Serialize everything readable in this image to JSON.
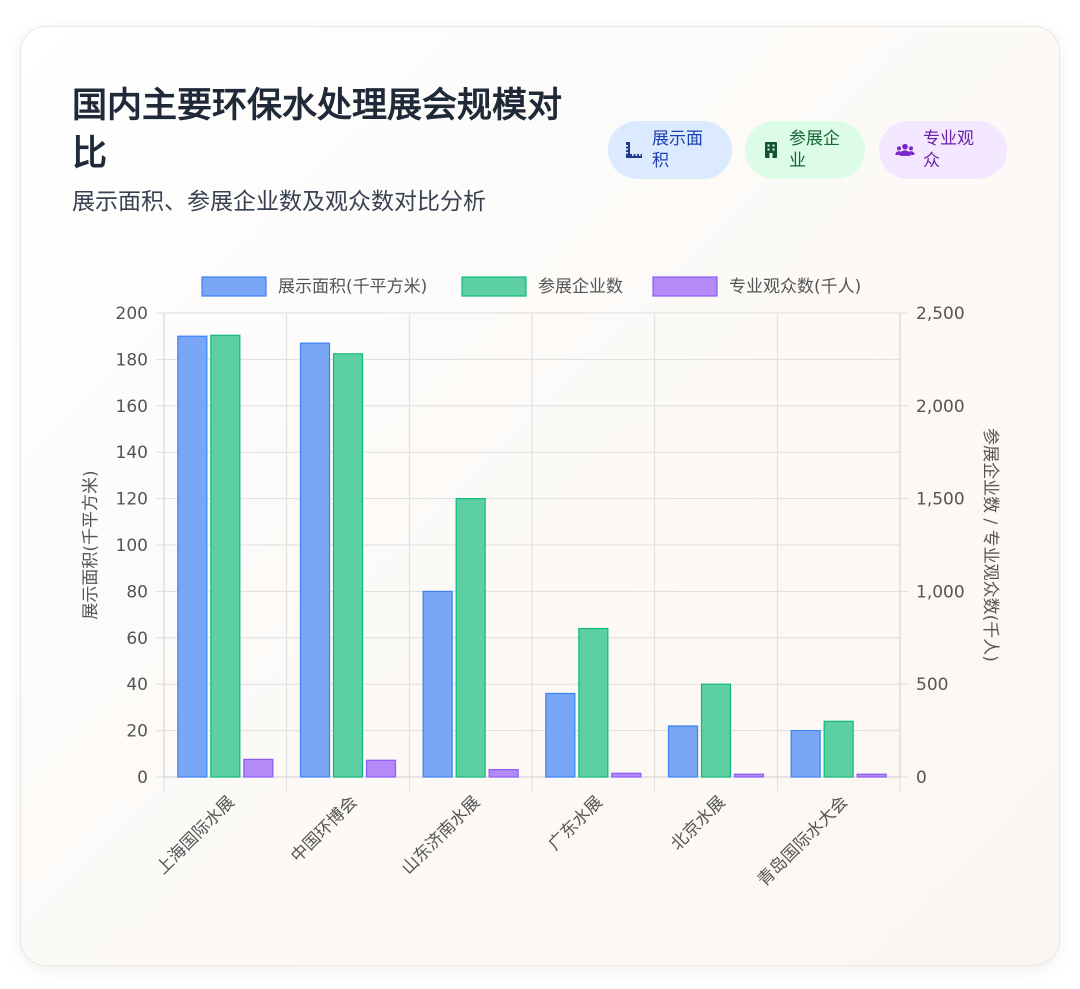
{
  "header": {
    "title": "国内主要环保水处理展会规模对比",
    "subtitle": "展示面积、参展企业数及观众数对比分析"
  },
  "badges": [
    {
      "label": "展示面积",
      "icon": "ruler-icon",
      "bg": "#dbeafe",
      "color": "#1e40af"
    },
    {
      "label": "参展企业",
      "icon": "building-icon",
      "bg": "#dcfce7",
      "color": "#166534"
    },
    {
      "label": "专业观众",
      "icon": "users-icon",
      "bg": "#f3e8ff",
      "color": "#6b21a8"
    }
  ],
  "chart_data": {
    "type": "bar",
    "categories": [
      "上海国际水展",
      "中国环博会",
      "山东济南水展",
      "广东水展",
      "北京水展",
      "青岛国际水大会"
    ],
    "series": [
      {
        "name": "展示面积(千平方米)",
        "axis": "left",
        "values": [
          190,
          187,
          80,
          36,
          22,
          20
        ],
        "fill": "#7aa7f5",
        "stroke": "#3b82f6"
      },
      {
        "name": "参展企业数",
        "axis": "right",
        "values": [
          2380,
          2280,
          1500,
          800,
          500,
          300
        ],
        "fill": "#5ccfa3",
        "stroke": "#10b981"
      },
      {
        "name": "专业观众数(千人)",
        "axis": "right",
        "values": [
          95,
          90,
          40,
          20,
          15,
          15
        ],
        "fill": "#b38af7",
        "stroke": "#8b5cf6"
      }
    ],
    "y_left": {
      "label": "展示面积(千平方米)",
      "min": 0,
      "max": 200,
      "ticks": [
        0,
        20,
        40,
        60,
        80,
        100,
        120,
        140,
        160,
        180,
        200
      ]
    },
    "y_right": {
      "label": "参展企业数 / 专业观众数(千人)",
      "min": 0,
      "max": 2500,
      "ticks": [
        "0",
        "500",
        "1,000",
        "1,500",
        "2,000",
        "2,500"
      ]
    },
    "legend_position": "top",
    "grid": true
  }
}
